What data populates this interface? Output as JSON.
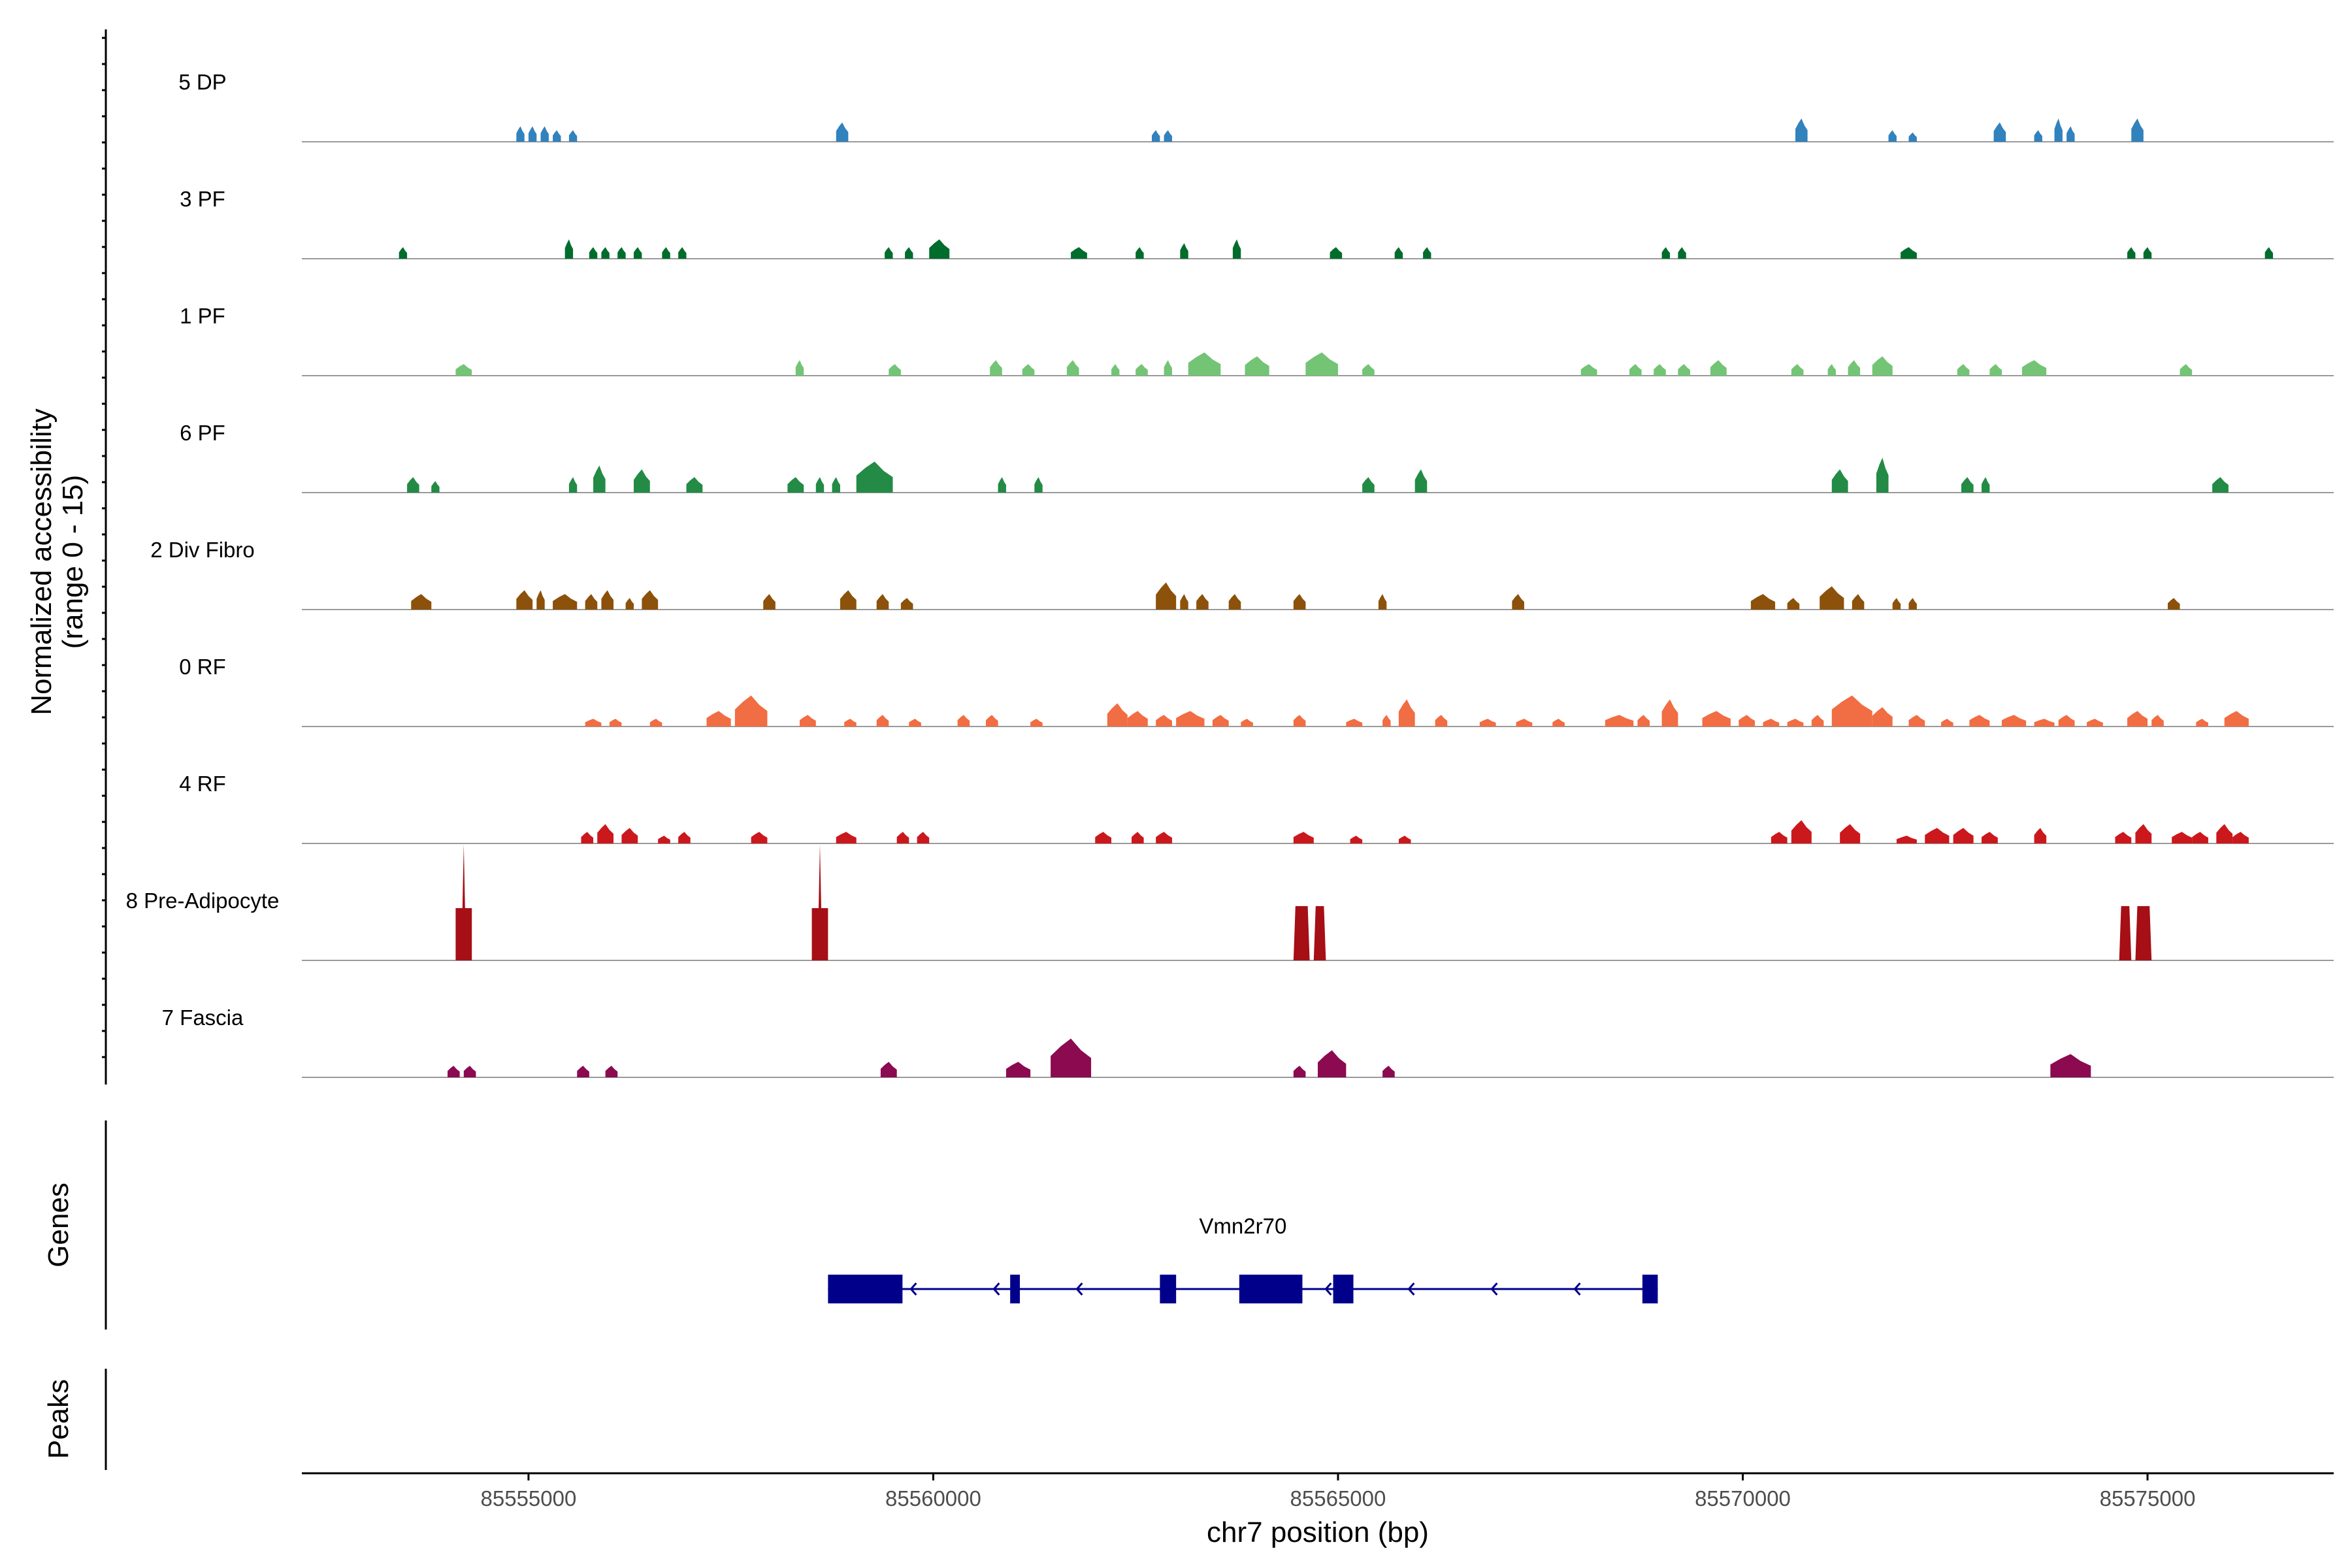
{
  "chart_data": {
    "type": "genome-track",
    "title": "",
    "ylabel": "Normalized accessibility",
    "ylabel_sub": "(range 0 - 15)",
    "xlabel": "chr7 position (bp)",
    "xlim": [
      85552200,
      85577300
    ],
    "x_ticks": [
      85555000,
      85560000,
      85565000,
      85570000,
      85575000
    ],
    "ylim": [
      0,
      15
    ],
    "tracks": [
      {
        "name": "5 DP",
        "color": "#3182bd",
        "peaks": [
          [
            85554850,
            85554950,
            2
          ],
          [
            85555000,
            85555100,
            2
          ],
          [
            85555150,
            85555250,
            2
          ],
          [
            85555300,
            85555400,
            1.5
          ],
          [
            85555500,
            85555600,
            1.5
          ],
          [
            85558800,
            85558950,
            2.5
          ],
          [
            85562700,
            85562800,
            1.5
          ],
          [
            85562850,
            85562950,
            1.5
          ],
          [
            85570650,
            85570800,
            3
          ],
          [
            85571800,
            85571900,
            1.5
          ],
          [
            85572050,
            85572150,
            1.2
          ],
          [
            85573100,
            85573250,
            2.5
          ],
          [
            85573600,
            85573700,
            1.5
          ],
          [
            85573850,
            85573950,
            3
          ],
          [
            85574000,
            85574100,
            2
          ],
          [
            85574800,
            85574950,
            3
          ]
        ]
      },
      {
        "name": "3 PF",
        "color": "#006d2c",
        "peaks": [
          [
            85553400,
            85553500,
            1.5
          ],
          [
            85555450,
            85555550,
            2.5
          ],
          [
            85555750,
            85555850,
            1.5
          ],
          [
            85555900,
            85556000,
            1.5
          ],
          [
            85556100,
            85556200,
            1.5
          ],
          [
            85556300,
            85556400,
            1.5
          ],
          [
            85556650,
            85556750,
            1.5
          ],
          [
            85556850,
            85556950,
            1.5
          ],
          [
            85559400,
            85559500,
            1.5
          ],
          [
            85559650,
            85559750,
            1.5
          ],
          [
            85559950,
            85560200,
            2.5
          ],
          [
            85561700,
            85561900,
            1.5
          ],
          [
            85562500,
            85562600,
            1.5
          ],
          [
            85563050,
            85563150,
            2
          ],
          [
            85563700,
            85563800,
            2.5
          ],
          [
            85564900,
            85565050,
            1.5
          ],
          [
            85565700,
            85565800,
            1.5
          ],
          [
            85566050,
            85566150,
            1.5
          ],
          [
            85569000,
            85569100,
            1.5
          ],
          [
            85569200,
            85569300,
            1.5
          ],
          [
            85571950,
            85572150,
            1.5
          ],
          [
            85574750,
            85574850,
            1.5
          ],
          [
            85574950,
            85575050,
            1.5
          ],
          [
            85576450,
            85576550,
            1.5
          ]
        ]
      },
      {
        "name": "1 PF",
        "color": "#74c476",
        "peaks": [
          [
            85554100,
            85554300,
            1.5
          ],
          [
            85558300,
            85558400,
            2
          ],
          [
            85559450,
            85559600,
            1.5
          ],
          [
            85560700,
            85560850,
            2
          ],
          [
            85561100,
            85561250,
            1.5
          ],
          [
            85561650,
            85561800,
            2
          ],
          [
            85562200,
            85562300,
            1.5
          ],
          [
            85562500,
            85562650,
            1.5
          ],
          [
            85562850,
            85562950,
            2
          ],
          [
            85563150,
            85563550,
            3
          ],
          [
            85563850,
            85564150,
            2.5
          ],
          [
            85564600,
            85565000,
            3
          ],
          [
            85565300,
            85565450,
            1.5
          ],
          [
            85568000,
            85568200,
            1.5
          ],
          [
            85568600,
            85568750,
            1.5
          ],
          [
            85568900,
            85569050,
            1.5
          ],
          [
            85569200,
            85569350,
            1.5
          ],
          [
            85569600,
            85569800,
            2
          ],
          [
            85570600,
            85570750,
            1.5
          ],
          [
            85571050,
            85571150,
            1.5
          ],
          [
            85571300,
            85571450,
            2
          ],
          [
            85571600,
            85571850,
            2.5
          ],
          [
            85572650,
            85572800,
            1.5
          ],
          [
            85573050,
            85573200,
            1.5
          ],
          [
            85573450,
            85573750,
            2
          ],
          [
            85575400,
            85575550,
            1.5
          ]
        ]
      },
      {
        "name": "6 PF",
        "color": "#238b45",
        "peaks": [
          [
            85553500,
            85553650,
            2
          ],
          [
            85553800,
            85553900,
            1.5
          ],
          [
            85555500,
            85555600,
            2
          ],
          [
            85555800,
            85555950,
            3.5
          ],
          [
            85556300,
            85556500,
            3
          ],
          [
            85556950,
            85557150,
            2
          ],
          [
            85558200,
            85558400,
            2
          ],
          [
            85558550,
            85558650,
            2
          ],
          [
            85558750,
            85558850,
            2
          ],
          [
            85559050,
            85559500,
            4
          ],
          [
            85560800,
            85560900,
            2
          ],
          [
            85561250,
            85561350,
            2
          ],
          [
            85565300,
            85565450,
            2
          ],
          [
            85565950,
            85566100,
            3
          ],
          [
            85571100,
            85571300,
            3
          ],
          [
            85571650,
            85571800,
            4.5
          ],
          [
            85572700,
            85572850,
            2
          ],
          [
            85572950,
            85573050,
            2
          ],
          [
            85575800,
            85576000,
            2
          ]
        ]
      },
      {
        "name": "2 Div Fibro",
        "color": "#8c510a",
        "peaks": [
          [
            85553550,
            85553800,
            2
          ],
          [
            85554850,
            85555050,
            2.5
          ],
          [
            85555100,
            85555200,
            2.5
          ],
          [
            85555300,
            85555600,
            2
          ],
          [
            85555700,
            85555850,
            2
          ],
          [
            85555900,
            85556050,
            2.5
          ],
          [
            85556200,
            85556300,
            1.5
          ],
          [
            85556400,
            85556600,
            2.5
          ],
          [
            85557900,
            85558050,
            2
          ],
          [
            85558850,
            85559050,
            2.5
          ],
          [
            85559300,
            85559450,
            2
          ],
          [
            85559600,
            85559750,
            1.5
          ],
          [
            85562750,
            85563000,
            3.5
          ],
          [
            85563050,
            85563150,
            2
          ],
          [
            85563250,
            85563400,
            2
          ],
          [
            85563650,
            85563800,
            2
          ],
          [
            85564450,
            85564600,
            2
          ],
          [
            85565500,
            85565600,
            2
          ],
          [
            85567150,
            85567300,
            2
          ],
          [
            85570100,
            85570400,
            2
          ],
          [
            85570550,
            85570700,
            1.5
          ],
          [
            85570950,
            85571250,
            3
          ],
          [
            85571350,
            85571500,
            2
          ],
          [
            85571850,
            85571950,
            1.5
          ],
          [
            85572050,
            85572150,
            1.5
          ],
          [
            85575250,
            85575400,
            1.5
          ]
        ]
      },
      {
        "name": "0 RF",
        "color": "#f16d43",
        "peaks": [
          [
            85555700,
            85555900,
            1
          ],
          [
            85556000,
            85556150,
            1
          ],
          [
            85556500,
            85556650,
            1
          ],
          [
            85557200,
            85557500,
            2
          ],
          [
            85557550,
            85557950,
            4
          ],
          [
            85558350,
            85558550,
            1.5
          ],
          [
            85558900,
            85559050,
            1
          ],
          [
            85559300,
            85559450,
            1.5
          ],
          [
            85559700,
            85559850,
            1
          ],
          [
            85560300,
            85560450,
            1.5
          ],
          [
            85560650,
            85560800,
            1.5
          ],
          [
            85561200,
            85561350,
            1
          ],
          [
            85562150,
            85562400,
            3
          ],
          [
            85562400,
            85562650,
            2
          ],
          [
            85562750,
            85562950,
            1.5
          ],
          [
            85563000,
            85563350,
            2
          ],
          [
            85563450,
            85563650,
            1.5
          ],
          [
            85563800,
            85563950,
            1
          ],
          [
            85564450,
            85564600,
            1.5
          ],
          [
            85565100,
            85565300,
            1
          ],
          [
            85565550,
            85565650,
            1.5
          ],
          [
            85565750,
            85565950,
            3.5
          ],
          [
            85566200,
            85566350,
            1.5
          ],
          [
            85566750,
            85566950,
            1
          ],
          [
            85567200,
            85567400,
            1
          ],
          [
            85567650,
            85567800,
            1
          ],
          [
            85568300,
            85568650,
            1.5
          ],
          [
            85568700,
            85568850,
            1.5
          ],
          [
            85569000,
            85569200,
            3.5
          ],
          [
            85569500,
            85569850,
            2
          ],
          [
            85569950,
            85570150,
            1.5
          ],
          [
            85570250,
            85570450,
            1
          ],
          [
            85570550,
            85570750,
            1
          ],
          [
            85570850,
            85571000,
            1.5
          ],
          [
            85571100,
            85571600,
            4
          ],
          [
            85571600,
            85571850,
            2.5
          ],
          [
            85572050,
            85572250,
            1.5
          ],
          [
            85572450,
            85572600,
            1
          ],
          [
            85572800,
            85573050,
            1.5
          ],
          [
            85573200,
            85573500,
            1.5
          ],
          [
            85573600,
            85573850,
            1
          ],
          [
            85573900,
            85574100,
            1.5
          ],
          [
            85574250,
            85574450,
            1
          ],
          [
            85574750,
            85575000,
            2
          ],
          [
            85575050,
            85575200,
            1.5
          ],
          [
            85575600,
            85575750,
            1
          ],
          [
            85575950,
            85576250,
            2
          ]
        ]
      },
      {
        "name": "4 RF",
        "color": "#cb181d",
        "peaks": [
          [
            85555650,
            85555800,
            1.5
          ],
          [
            85555850,
            85556050,
            2.5
          ],
          [
            85556150,
            85556350,
            2
          ],
          [
            85556600,
            85556750,
            1
          ],
          [
            85556850,
            85557000,
            1.5
          ],
          [
            85557750,
            85557950,
            1.5
          ],
          [
            85558800,
            85559050,
            1.5
          ],
          [
            85559550,
            85559700,
            1.5
          ],
          [
            85559800,
            85559950,
            1.5
          ],
          [
            85562000,
            85562200,
            1.5
          ],
          [
            85562450,
            85562600,
            1.5
          ],
          [
            85562750,
            85562950,
            1.5
          ],
          [
            85564450,
            85564700,
            1.5
          ],
          [
            85565150,
            85565300,
            1
          ],
          [
            85565750,
            85565900,
            1
          ],
          [
            85570350,
            85570550,
            1.5
          ],
          [
            85570600,
            85570850,
            3
          ],
          [
            85571200,
            85571450,
            2.5
          ],
          [
            85571900,
            85572150,
            1
          ],
          [
            85572250,
            85572550,
            2
          ],
          [
            85572600,
            85572850,
            2
          ],
          [
            85572950,
            85573150,
            1.5
          ],
          [
            85573600,
            85573750,
            2
          ],
          [
            85574600,
            85574800,
            1.5
          ],
          [
            85574850,
            85575050,
            2.5
          ],
          [
            85575300,
            85575550,
            1.5
          ],
          [
            85575550,
            85575750,
            1.5
          ],
          [
            85575850,
            85576050,
            2.5
          ],
          [
            85576050,
            85576250,
            1.5
          ]
        ]
      },
      {
        "name": "8 Pre-Adipocyte",
        "color": "#a50f15",
        "peaks": [
          [
            85554100,
            85554300,
            15
          ],
          [
            85558500,
            85558700,
            15
          ],
          [
            85564450,
            85564650,
            7
          ],
          [
            85564700,
            85564850,
            7
          ],
          [
            85574650,
            85574800,
            7
          ],
          [
            85574850,
            85575050,
            7
          ]
        ]
      },
      {
        "name": "7 Fascia",
        "color": "#8b0a50",
        "peaks": [
          [
            85554000,
            85554150,
            1.5
          ],
          [
            85554200,
            85554350,
            1.5
          ],
          [
            85555600,
            85555750,
            1.5
          ],
          [
            85555950,
            85556100,
            1.5
          ],
          [
            85559350,
            85559550,
            2
          ],
          [
            85560900,
            85561200,
            2
          ],
          [
            85561450,
            85561950,
            5
          ],
          [
            85564450,
            85564600,
            1.5
          ],
          [
            85564750,
            85565100,
            3.5
          ],
          [
            85565550,
            85565700,
            1.5
          ],
          [
            85573800,
            85574300,
            3
          ]
        ]
      }
    ],
    "gene": {
      "name": "Vmn2r70",
      "strand": "-",
      "start": 85558700,
      "end": 85568950,
      "exons": [
        [
          85558700,
          85559620
        ],
        [
          85560950,
          85561070
        ],
        [
          85562800,
          85563000
        ],
        [
          85563780,
          85564560
        ],
        [
          85564940,
          85565190
        ],
        [
          85568760,
          85568950
        ]
      ]
    },
    "panel_labels": {
      "genes": "Genes",
      "peaks": "Peaks"
    }
  }
}
